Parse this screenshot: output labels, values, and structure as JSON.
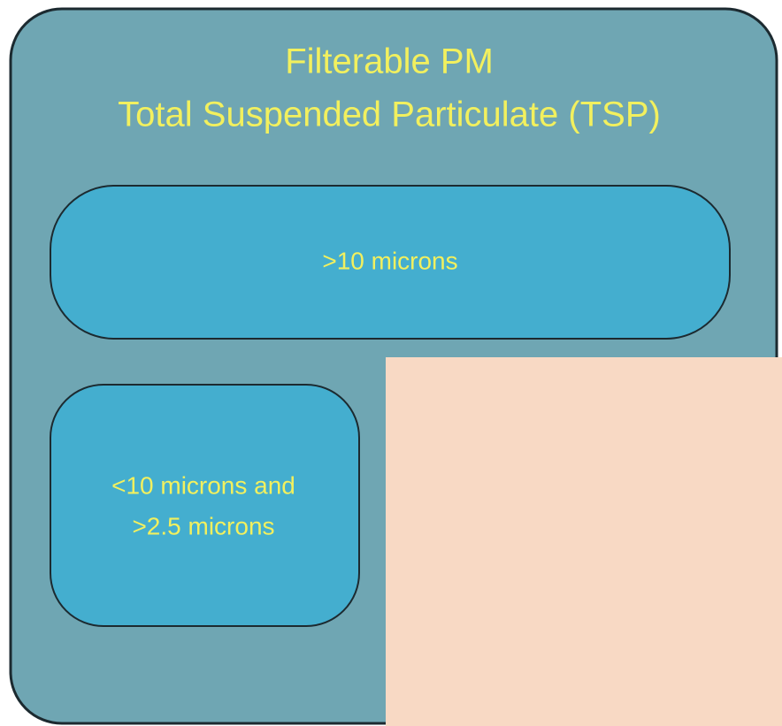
{
  "title": [
    "Filterable PM",
    "Total Suspended Particulate (TSP)"
  ],
  "boxes": [
    {
      "lines": [
        ">10 microns"
      ]
    },
    {
      "lines": [
        "<10 microns and",
        ">2.5 microns"
      ]
    }
  ]
}
